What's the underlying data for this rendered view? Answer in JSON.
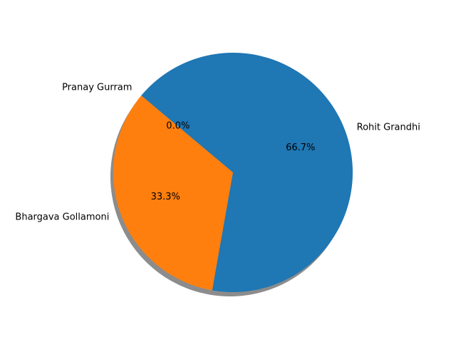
{
  "chart_data": {
    "type": "pie",
    "slices": [
      {
        "label": "Pranay Gurram",
        "value": 0,
        "pct_label": "0.0%",
        "color": "#1f77b4"
      },
      {
        "label": "Bhargava Gollamoni",
        "value": 1,
        "pct_label": "33.3%",
        "color": "#ff7f0e"
      },
      {
        "label": "Rohit Grandhi",
        "value": 2,
        "pct_label": "66.7%",
        "color": "#1f77b4"
      }
    ],
    "start_angle_deg": 140,
    "direction": "counterclockwise",
    "shadow": true,
    "title": "",
    "legend": "none"
  }
}
